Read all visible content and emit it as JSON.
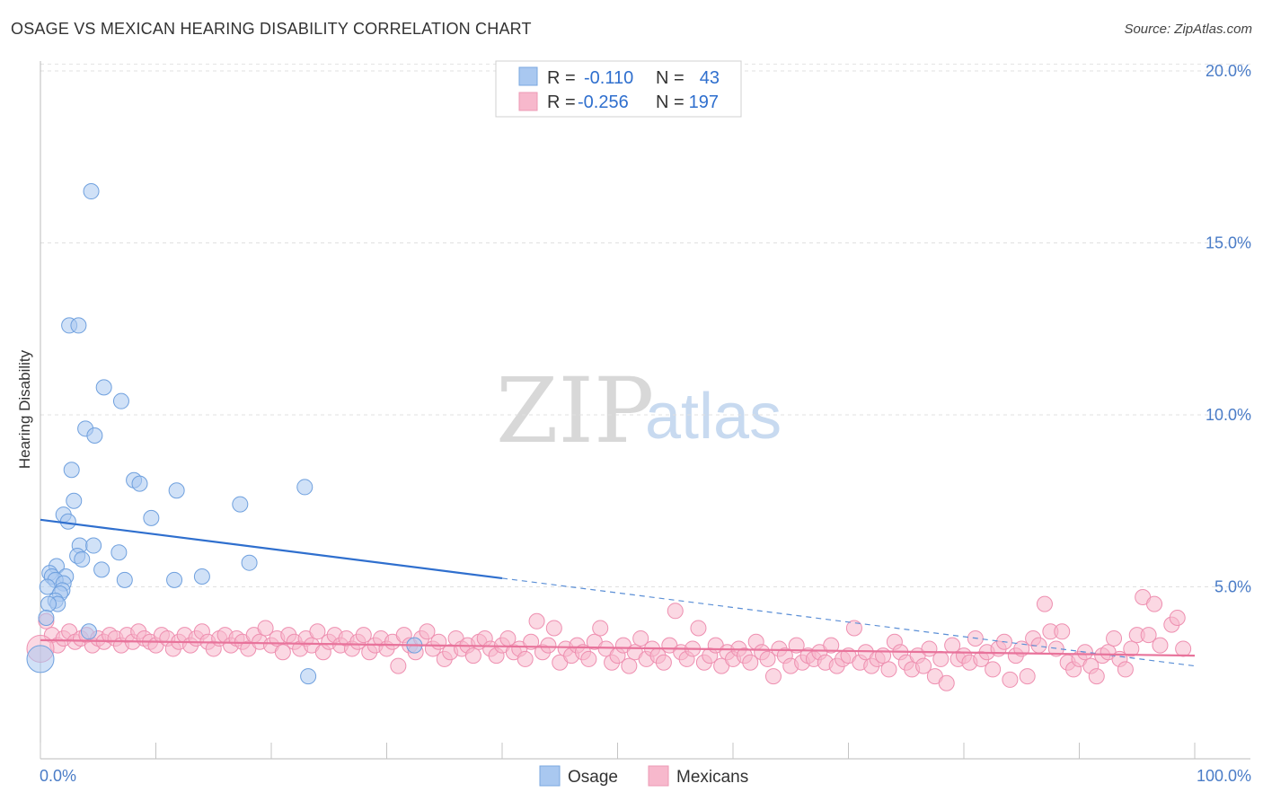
{
  "header": {
    "title": "OSAGE VS MEXICAN HEARING DISABILITY CORRELATION CHART",
    "source": "Source: ZipAtlas.com"
  },
  "watermark": {
    "zip": "ZIP",
    "atlas": "atlas"
  },
  "legend": {
    "rows": [
      {
        "r_label": "R =",
        "r_value": "-0.110",
        "n_label": "N =",
        "n_value": "43",
        "color": "#a9c8f0"
      },
      {
        "r_label": "R =",
        "r_value": "-0.256",
        "n_label": "N =",
        "n_value": "197",
        "color": "#f7b8cc"
      }
    ]
  },
  "bottom_legend": {
    "items": [
      {
        "label": "Osage",
        "color": "#a9c8f0"
      },
      {
        "label": "Mexicans",
        "color": "#f7b8cc"
      }
    ]
  },
  "chart_data": {
    "type": "scatter",
    "title": "OSAGE VS MEXICAN HEARING DISABILITY CORRELATION CHART",
    "ylabel": "Hearing Disability",
    "xlabel": "",
    "xlim": [
      0,
      100
    ],
    "ylim": [
      0,
      20.5
    ],
    "x_tick_labels": [
      "0.0%",
      "100.0%"
    ],
    "y_ticks": [
      5,
      10,
      15,
      20
    ],
    "y_tick_labels": [
      "5.0%",
      "10.0%",
      "15.0%",
      "20.0%"
    ],
    "grid": true,
    "series": [
      {
        "name": "Osage",
        "color": "#6fa0de",
        "fill": "#a9c8f0",
        "trend": {
          "x0": 0,
          "y0": 6.95,
          "x1": 40,
          "y1": 5.25,
          "dashed_to_x": 100,
          "dashed_to_y": 2.7
        },
        "points": [
          [
            4.4,
            16.5
          ],
          [
            2.5,
            12.6
          ],
          [
            3.3,
            12.6
          ],
          [
            5.5,
            10.8
          ],
          [
            7.0,
            10.4
          ],
          [
            3.9,
            9.6
          ],
          [
            4.7,
            9.4
          ],
          [
            2.7,
            8.4
          ],
          [
            8.1,
            8.1
          ],
          [
            8.6,
            8.0
          ],
          [
            11.8,
            7.8
          ],
          [
            22.9,
            7.9
          ],
          [
            2.9,
            7.5
          ],
          [
            17.3,
            7.4
          ],
          [
            2.0,
            7.1
          ],
          [
            9.6,
            7.0
          ],
          [
            2.4,
            6.9
          ],
          [
            3.4,
            6.2
          ],
          [
            4.6,
            6.2
          ],
          [
            6.8,
            6.0
          ],
          [
            3.2,
            5.9
          ],
          [
            3.6,
            5.8
          ],
          [
            1.4,
            5.6
          ],
          [
            18.1,
            5.7
          ],
          [
            5.3,
            5.5
          ],
          [
            0.8,
            5.4
          ],
          [
            1.0,
            5.3
          ],
          [
            2.2,
            5.3
          ],
          [
            7.3,
            5.2
          ],
          [
            11.6,
            5.2
          ],
          [
            14.0,
            5.3
          ],
          [
            1.3,
            5.2
          ],
          [
            2.0,
            5.1
          ],
          [
            0.6,
            5.0
          ],
          [
            1.9,
            4.9
          ],
          [
            1.7,
            4.8
          ],
          [
            1.3,
            4.6
          ],
          [
            1.5,
            4.5
          ],
          [
            0.7,
            4.5
          ],
          [
            0.5,
            4.1
          ],
          [
            4.2,
            3.7
          ],
          [
            32.4,
            3.3
          ],
          [
            23.2,
            2.4
          ]
        ],
        "big_point": [
          0.0,
          2.9
        ]
      },
      {
        "name": "Mexicans",
        "color": "#ee8fb0",
        "fill": "#f7b8cc",
        "trend": {
          "x0": 0,
          "y0": 3.45,
          "x1": 100,
          "y1": 3.0
        },
        "points": [
          [
            0.5,
            4.0
          ],
          [
            1.0,
            3.6
          ],
          [
            1.5,
            3.3
          ],
          [
            2.0,
            3.5
          ],
          [
            2.5,
            3.7
          ],
          [
            3.0,
            3.4
          ],
          [
            3.5,
            3.5
          ],
          [
            4.0,
            3.6
          ],
          [
            4.5,
            3.3
          ],
          [
            5.0,
            3.5
          ],
          [
            5.5,
            3.4
          ],
          [
            6.0,
            3.6
          ],
          [
            6.5,
            3.5
          ],
          [
            7.0,
            3.3
          ],
          [
            7.5,
            3.6
          ],
          [
            8.0,
            3.4
          ],
          [
            8.5,
            3.7
          ],
          [
            9.0,
            3.5
          ],
          [
            9.5,
            3.4
          ],
          [
            10.0,
            3.3
          ],
          [
            10.5,
            3.6
          ],
          [
            11.0,
            3.5
          ],
          [
            11.5,
            3.2
          ],
          [
            12.0,
            3.4
          ],
          [
            12.5,
            3.6
          ],
          [
            13.0,
            3.3
          ],
          [
            13.5,
            3.5
          ],
          [
            14.0,
            3.7
          ],
          [
            14.5,
            3.4
          ],
          [
            15.0,
            3.2
          ],
          [
            15.5,
            3.5
          ],
          [
            16.0,
            3.6
          ],
          [
            16.5,
            3.3
          ],
          [
            17.0,
            3.5
          ],
          [
            17.5,
            3.4
          ],
          [
            18.0,
            3.2
          ],
          [
            18.5,
            3.6
          ],
          [
            19.0,
            3.4
          ],
          [
            19.5,
            3.8
          ],
          [
            20.0,
            3.3
          ],
          [
            20.5,
            3.5
          ],
          [
            21.0,
            3.1
          ],
          [
            21.5,
            3.6
          ],
          [
            22.0,
            3.4
          ],
          [
            22.5,
            3.2
          ],
          [
            23.0,
            3.5
          ],
          [
            23.5,
            3.3
          ],
          [
            24.0,
            3.7
          ],
          [
            24.5,
            3.1
          ],
          [
            25.0,
            3.4
          ],
          [
            25.5,
            3.6
          ],
          [
            26.0,
            3.3
          ],
          [
            26.5,
            3.5
          ],
          [
            27.0,
            3.2
          ],
          [
            27.5,
            3.4
          ],
          [
            28.0,
            3.6
          ],
          [
            28.5,
            3.1
          ],
          [
            29.0,
            3.3
          ],
          [
            29.5,
            3.5
          ],
          [
            30.0,
            3.2
          ],
          [
            30.5,
            3.4
          ],
          [
            31.0,
            2.7
          ],
          [
            31.5,
            3.6
          ],
          [
            32.0,
            3.3
          ],
          [
            32.5,
            3.1
          ],
          [
            33.0,
            3.5
          ],
          [
            33.5,
            3.7
          ],
          [
            34.0,
            3.2
          ],
          [
            34.5,
            3.4
          ],
          [
            35.0,
            2.9
          ],
          [
            35.5,
            3.1
          ],
          [
            36.0,
            3.5
          ],
          [
            36.5,
            3.2
          ],
          [
            37.0,
            3.3
          ],
          [
            37.5,
            3.0
          ],
          [
            38.0,
            3.4
          ],
          [
            38.5,
            3.5
          ],
          [
            39.0,
            3.2
          ],
          [
            39.5,
            3.0
          ],
          [
            40.0,
            3.3
          ],
          [
            40.5,
            3.5
          ],
          [
            41.0,
            3.1
          ],
          [
            41.5,
            3.2
          ],
          [
            42.0,
            2.9
          ],
          [
            42.5,
            3.4
          ],
          [
            43.0,
            4.0
          ],
          [
            43.5,
            3.1
          ],
          [
            44.0,
            3.3
          ],
          [
            44.5,
            3.8
          ],
          [
            45.0,
            2.8
          ],
          [
            45.5,
            3.2
          ],
          [
            46.0,
            3.0
          ],
          [
            46.5,
            3.3
          ],
          [
            47.0,
            3.1
          ],
          [
            47.5,
            2.9
          ],
          [
            48.0,
            3.4
          ],
          [
            48.5,
            3.8
          ],
          [
            49.0,
            3.2
          ],
          [
            49.5,
            2.8
          ],
          [
            50.0,
            3.0
          ],
          [
            50.5,
            3.3
          ],
          [
            51.0,
            2.7
          ],
          [
            51.5,
            3.1
          ],
          [
            52.0,
            3.5
          ],
          [
            52.5,
            2.9
          ],
          [
            53.0,
            3.2
          ],
          [
            53.5,
            3.0
          ],
          [
            54.0,
            2.8
          ],
          [
            54.5,
            3.3
          ],
          [
            55.0,
            4.3
          ],
          [
            55.5,
            3.1
          ],
          [
            56.0,
            2.9
          ],
          [
            56.5,
            3.2
          ],
          [
            57.0,
            3.8
          ],
          [
            57.5,
            2.8
          ],
          [
            58.0,
            3.0
          ],
          [
            58.5,
            3.3
          ],
          [
            59.0,
            2.7
          ],
          [
            59.5,
            3.1
          ],
          [
            60.0,
            2.9
          ],
          [
            60.5,
            3.2
          ],
          [
            61.0,
            3.0
          ],
          [
            61.5,
            2.8
          ],
          [
            62.0,
            3.4
          ],
          [
            62.5,
            3.1
          ],
          [
            63.0,
            2.9
          ],
          [
            63.5,
            2.4
          ],
          [
            64.0,
            3.2
          ],
          [
            64.5,
            3.0
          ],
          [
            65.0,
            2.7
          ],
          [
            65.5,
            3.3
          ],
          [
            66.0,
            2.8
          ],
          [
            66.5,
            3.0
          ],
          [
            67.0,
            2.9
          ],
          [
            67.5,
            3.1
          ],
          [
            68.0,
            2.8
          ],
          [
            68.5,
            3.3
          ],
          [
            69.0,
            2.7
          ],
          [
            69.5,
            2.9
          ],
          [
            70.0,
            3.0
          ],
          [
            70.5,
            3.8
          ],
          [
            71.0,
            2.8
          ],
          [
            71.5,
            3.1
          ],
          [
            72.0,
            2.7
          ],
          [
            72.5,
            2.9
          ],
          [
            73.0,
            3.0
          ],
          [
            73.5,
            2.6
          ],
          [
            74.0,
            3.4
          ],
          [
            74.5,
            3.1
          ],
          [
            75.0,
            2.8
          ],
          [
            75.5,
            2.6
          ],
          [
            76.0,
            3.0
          ],
          [
            76.5,
            2.7
          ],
          [
            77.0,
            3.2
          ],
          [
            77.5,
            2.4
          ],
          [
            78.0,
            2.9
          ],
          [
            78.5,
            2.2
          ],
          [
            79.0,
            3.3
          ],
          [
            79.5,
            2.9
          ],
          [
            80.0,
            3.0
          ],
          [
            80.5,
            2.8
          ],
          [
            81.0,
            3.5
          ],
          [
            81.5,
            2.9
          ],
          [
            82.0,
            3.1
          ],
          [
            82.5,
            2.6
          ],
          [
            83.0,
            3.2
          ],
          [
            83.5,
            3.4
          ],
          [
            84.0,
            2.3
          ],
          [
            84.5,
            3.0
          ],
          [
            85.0,
            3.2
          ],
          [
            85.5,
            2.4
          ],
          [
            86.0,
            3.5
          ],
          [
            86.5,
            3.3
          ],
          [
            87.0,
            4.5
          ],
          [
            87.5,
            3.7
          ],
          [
            88.0,
            3.2
          ],
          [
            88.5,
            3.7
          ],
          [
            89.0,
            2.8
          ],
          [
            89.5,
            2.6
          ],
          [
            90.0,
            2.9
          ],
          [
            90.5,
            3.1
          ],
          [
            91.0,
            2.7
          ],
          [
            91.5,
            2.4
          ],
          [
            92.0,
            3.0
          ],
          [
            92.5,
            3.1
          ],
          [
            93.0,
            3.5
          ],
          [
            93.5,
            2.9
          ],
          [
            94.0,
            2.6
          ],
          [
            94.5,
            3.2
          ],
          [
            95.0,
            3.6
          ],
          [
            95.5,
            4.7
          ],
          [
            96.0,
            3.6
          ],
          [
            96.5,
            4.5
          ],
          [
            97.0,
            3.3
          ],
          [
            98.0,
            3.9
          ],
          [
            98.5,
            4.1
          ],
          [
            99.0,
            3.2
          ]
        ],
        "big_point": [
          0.0,
          3.2
        ]
      }
    ]
  }
}
